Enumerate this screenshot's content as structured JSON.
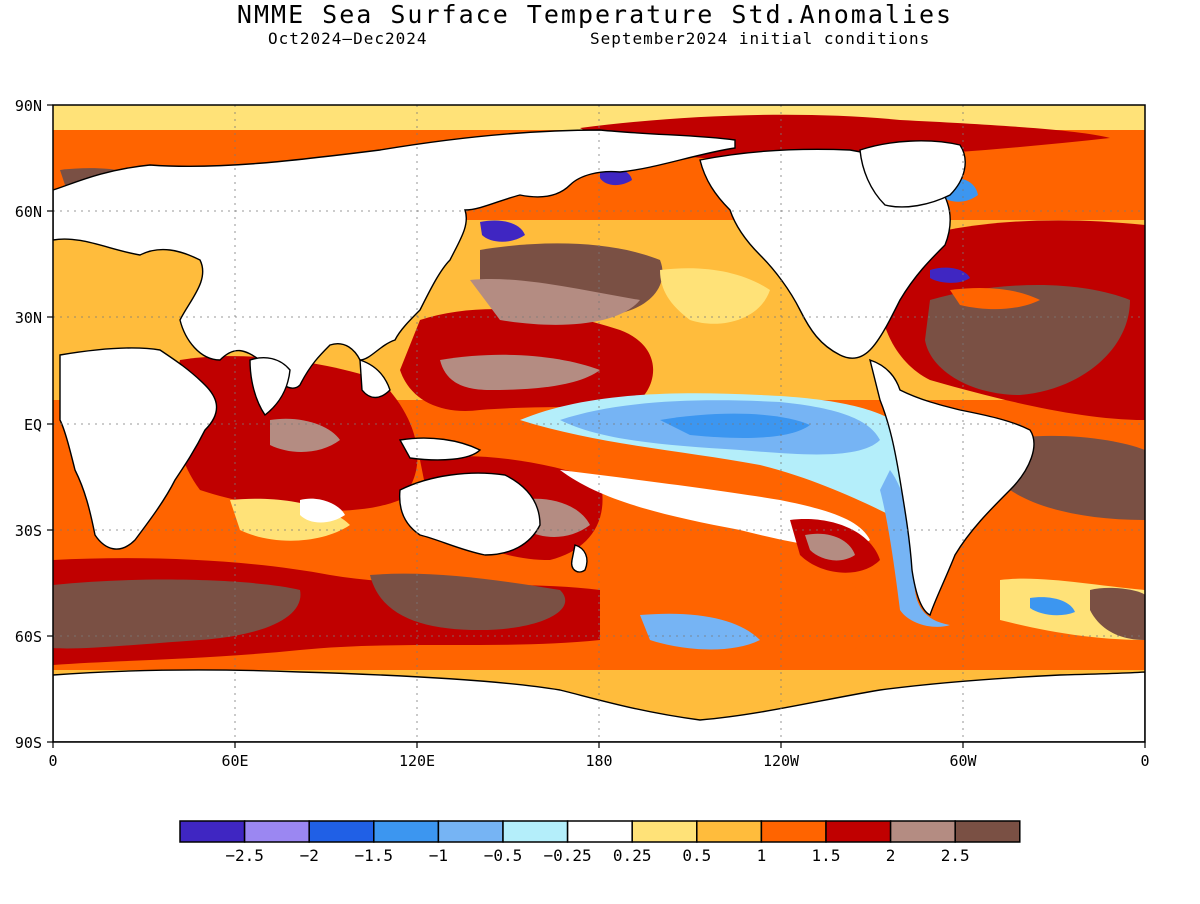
{
  "header": {
    "title": "NMME Sea Surface Temperature Std.Anomalies",
    "period": "Oct2024–Dec2024",
    "init": "September2024 initial conditions"
  },
  "axes": {
    "lat_labels": [
      "90N",
      "60N",
      "30N",
      "EQ",
      "30S",
      "60S",
      "90S"
    ],
    "lon_labels": [
      "0",
      "60E",
      "120E",
      "180",
      "120W",
      "60W",
      "0"
    ]
  },
  "legend": {
    "colors": [
      "#3f26c2",
      "#9b87f2",
      "#2060e6",
      "#3c96f0",
      "#76b4f4",
      "#b4eefa",
      "#ffffff",
      "#ffe278",
      "#ffbc3c",
      "#ff6400",
      "#c00000",
      "#b48c82",
      "#7a5044"
    ],
    "labels": [
      "−2.5",
      "−2",
      "−1.5",
      "−1",
      "−0.5",
      "−0.25",
      "0.25",
      "0.5",
      "1",
      "1.5",
      "2",
      "2.5"
    ]
  },
  "colors": {
    "land": "#ffffff",
    "cold_tongue": "#76b4f4",
    "strong_cold": "#3c96f0",
    "warm": "#ff6400",
    "hot": "#c00000",
    "very_hot": "#7a5044"
  }
}
